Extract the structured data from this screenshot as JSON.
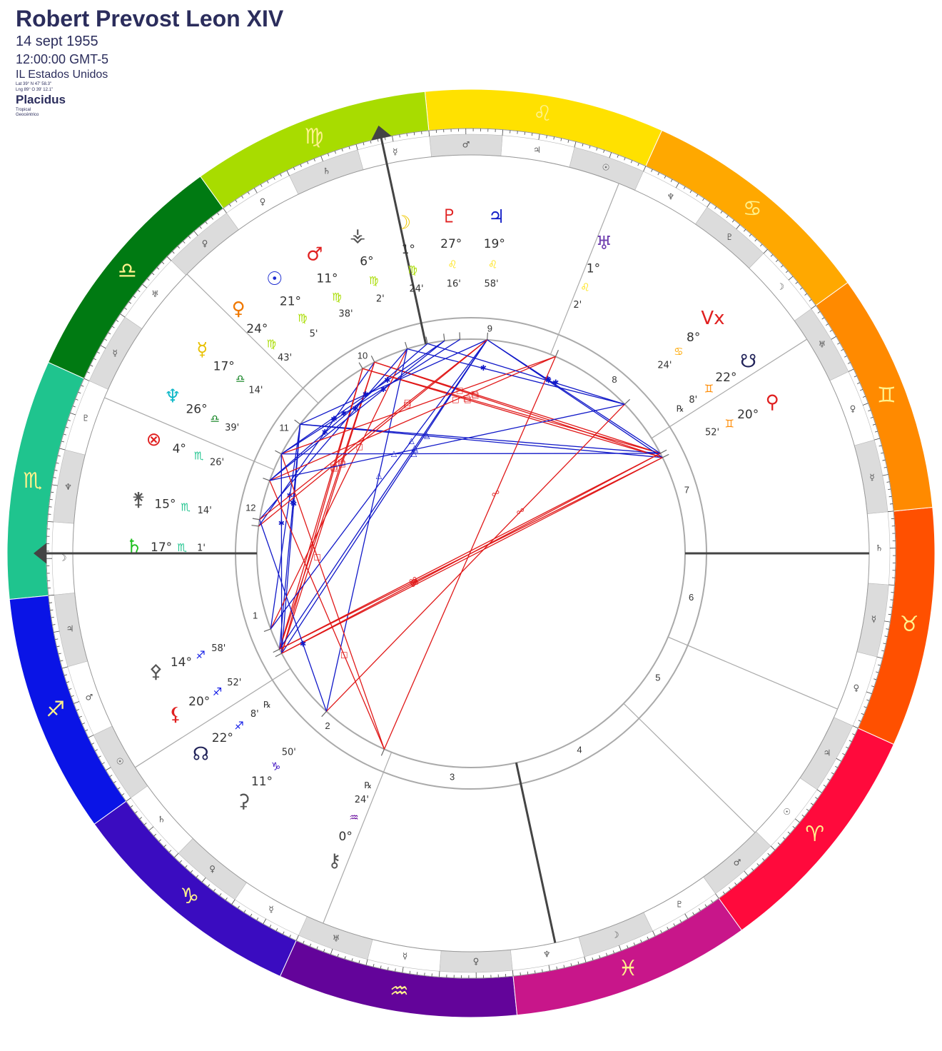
{
  "header": {
    "title": "Robert Prevost Leon XIV",
    "date": "14 sept 1955",
    "time": "12:00:00 GMT-5",
    "place": "IL Estados Unidos",
    "lat": "Lat 39° N 47' 58.3\"",
    "lng": "Lng 89° O 39' 12.1\"",
    "house_system": "Placidus",
    "zodiac": "Tropical",
    "perspective": "Geocéntrico"
  },
  "chart": {
    "signs": [
      {
        "glyph": "♈",
        "color": "#ff0a3c"
      },
      {
        "glyph": "♉",
        "color": "#ff5000"
      },
      {
        "glyph": "♊",
        "color": "#ff8a00"
      },
      {
        "glyph": "♋",
        "color": "#ffa800"
      },
      {
        "glyph": "♌",
        "color": "#ffe100"
      },
      {
        "glyph": "♍",
        "color": "#a8dc00"
      },
      {
        "glyph": "♎",
        "color": "#007a12"
      },
      {
        "glyph": "♏",
        "color": "#1fc48e"
      },
      {
        "glyph": "♐",
        "color": "#0a14e6"
      },
      {
        "glyph": "♑",
        "color": "#3a0cc0"
      },
      {
        "glyph": "♒",
        "color": "#63049a"
      },
      {
        "glyph": "♓",
        "color": "#c8168a"
      }
    ],
    "decans": [
      "♂",
      "☉",
      "♃",
      "♀",
      "☿",
      "♄",
      "☿",
      "♀",
      "♅",
      "☽",
      "♇",
      "♆",
      "☉",
      "♃",
      "♂",
      "☿",
      "♄",
      "♀",
      "♀",
      "♅",
      "☿",
      "♇",
      "♆",
      "☽",
      "♃",
      "♂",
      "☉",
      "♄",
      "♀",
      "☿",
      "♅",
      "☿",
      "♀",
      "♆",
      "☽",
      "♇"
    ],
    "houses": [
      {
        "number": 1,
        "cusp": 234.3
      },
      {
        "number": 2,
        "cusp": 266.8
      },
      {
        "number": 3,
        "cusp": 302.5
      },
      {
        "number": 4,
        "cusp": 336.5
      },
      {
        "number": 5,
        "cusp": 9.8
      },
      {
        "number": 6,
        "cusp": 31.3
      },
      {
        "number": 7,
        "cusp": 54.3
      },
      {
        "number": 8,
        "cusp": 86.8
      },
      {
        "number": 9,
        "cusp": 122.5
      },
      {
        "number": 10,
        "cusp": 156.5
      },
      {
        "number": 11,
        "cusp": 189.8
      },
      {
        "number": 12,
        "cusp": 211.3
      }
    ],
    "planets": [
      {
        "glyph": "☉",
        "color": "#1b2bd0",
        "degree": {
          "value": 21,
          "label": "21°"
        },
        "sign": "♍",
        "minute": {
          "value": 5,
          "label": "5'"
        }
      },
      {
        "glyph": "☽",
        "color": "#f0c800",
        "degree": {
          "value": 1,
          "label": "1°"
        },
        "sign": "♍",
        "minute": {
          "value": 24,
          "label": "24'"
        }
      },
      {
        "glyph": "☿",
        "color": "#e8c000",
        "degree": {
          "value": 17,
          "label": "17°"
        },
        "sign": "♎",
        "minute": {
          "value": 14,
          "label": "14'"
        }
      },
      {
        "glyph": "♀",
        "color": "#f07800",
        "degree": {
          "value": 24,
          "label": "24°"
        },
        "sign": "♍",
        "minute": {
          "value": 43,
          "label": "43'"
        }
      },
      {
        "glyph": "♂",
        "color": "#e02020",
        "degree": {
          "value": 11,
          "label": "11°"
        },
        "sign": "♍",
        "minute": {
          "value": 38,
          "label": "38'"
        }
      },
      {
        "glyph": "♃",
        "color": "#1520c8",
        "degree": {
          "value": 19,
          "label": "19°"
        },
        "sign": "♌",
        "minute": {
          "value": 58,
          "label": "58'"
        }
      },
      {
        "glyph": "♄",
        "color": "#20c020",
        "degree": {
          "value": 17,
          "label": "17°"
        },
        "sign": "♏",
        "minute": {
          "value": 1,
          "label": "1'"
        }
      },
      {
        "glyph": "♅",
        "color": "#7040b0",
        "degree": {
          "value": 1,
          "label": "1°"
        },
        "sign": "♌",
        "minute": {
          "value": 2,
          "label": "2'"
        }
      },
      {
        "glyph": "♆",
        "color": "#10b8c8",
        "degree": {
          "value": 26,
          "label": "26°"
        },
        "sign": "♎",
        "minute": {
          "value": 39,
          "label": "39'"
        }
      },
      {
        "glyph": "♇",
        "color": "#e02020",
        "degree": {
          "value": 27,
          "label": "27°"
        },
        "sign": "♌",
        "minute": {
          "value": 16,
          "label": "16'"
        }
      },
      {
        "glyph": "⚷",
        "color": "#555555",
        "degree": {
          "value": 0,
          "label": "0°"
        },
        "sign": "♒",
        "minute": {
          "value": 24,
          "label": "24'"
        },
        "retro": "℞"
      },
      {
        "glyph": "⚸",
        "color": "#e02020",
        "degree": {
          "value": 20,
          "label": "20°"
        },
        "sign": "♐",
        "minute": {
          "value": 52,
          "label": "52'"
        }
      },
      {
        "glyph": "☊",
        "color": "#22245a",
        "degree": {
          "value": 22,
          "label": "22°"
        },
        "sign": "♐",
        "minute": {
          "value": 8,
          "label": "8'"
        },
        "retro": "℞"
      },
      {
        "glyph": "☋",
        "color": "#22245a",
        "degree": {
          "value": 22,
          "label": "22°"
        },
        "sign": "♊",
        "minute": {
          "value": 8,
          "label": "8'"
        },
        "retro": "℞"
      },
      {
        "glyph": "⚲",
        "color": "#e02020",
        "degree": {
          "value": 20,
          "label": "20°"
        },
        "sign": "♊",
        "minute": {
          "value": 52,
          "label": "52'"
        }
      },
      {
        "glyph": "⊗",
        "color": "#e02020",
        "degree": {
          "value": 4,
          "label": "4°"
        },
        "sign": "♏",
        "minute": {
          "value": 26,
          "label": "26'"
        }
      },
      {
        "glyph": "Vx",
        "color": "#e02020",
        "degree": {
          "value": 8,
          "label": "8°"
        },
        "sign": "♋",
        "minute": {
          "value": 24,
          "label": "24'"
        }
      },
      {
        "glyph": "⚴",
        "color": "#555555",
        "degree": {
          "value": 14,
          "label": "14°"
        },
        "sign": "♐",
        "minute": {
          "value": 58,
          "label": "58'"
        }
      },
      {
        "glyph": "⚳",
        "color": "#555555",
        "degree": {
          "value": 11,
          "label": "11°"
        },
        "sign": "♑",
        "minute": {
          "value": 50,
          "label": "50'"
        }
      },
      {
        "glyph": "⚵",
        "color": "#555555",
        "degree": {
          "value": 15,
          "label": "15°"
        },
        "sign": "♏",
        "minute": {
          "value": 14,
          "label": "14'"
        }
      },
      {
        "glyph": "⚶",
        "color": "#555555",
        "degree": {
          "value": 6,
          "label": "6°"
        },
        "sign": "♍",
        "minute": {
          "value": 2,
          "label": "2'"
        }
      }
    ],
    "aspects": [
      {
        "angle": 180,
        "color": "#e01818",
        "symbol": "☍"
      },
      {
        "angle": 90,
        "color": "#e01818",
        "symbol": "□"
      },
      {
        "angle": 120,
        "color": "#1018c8",
        "symbol": "△"
      },
      {
        "angle": 60,
        "color": "#1018c8",
        "symbol": "✱"
      }
    ],
    "orb": 5
  }
}
